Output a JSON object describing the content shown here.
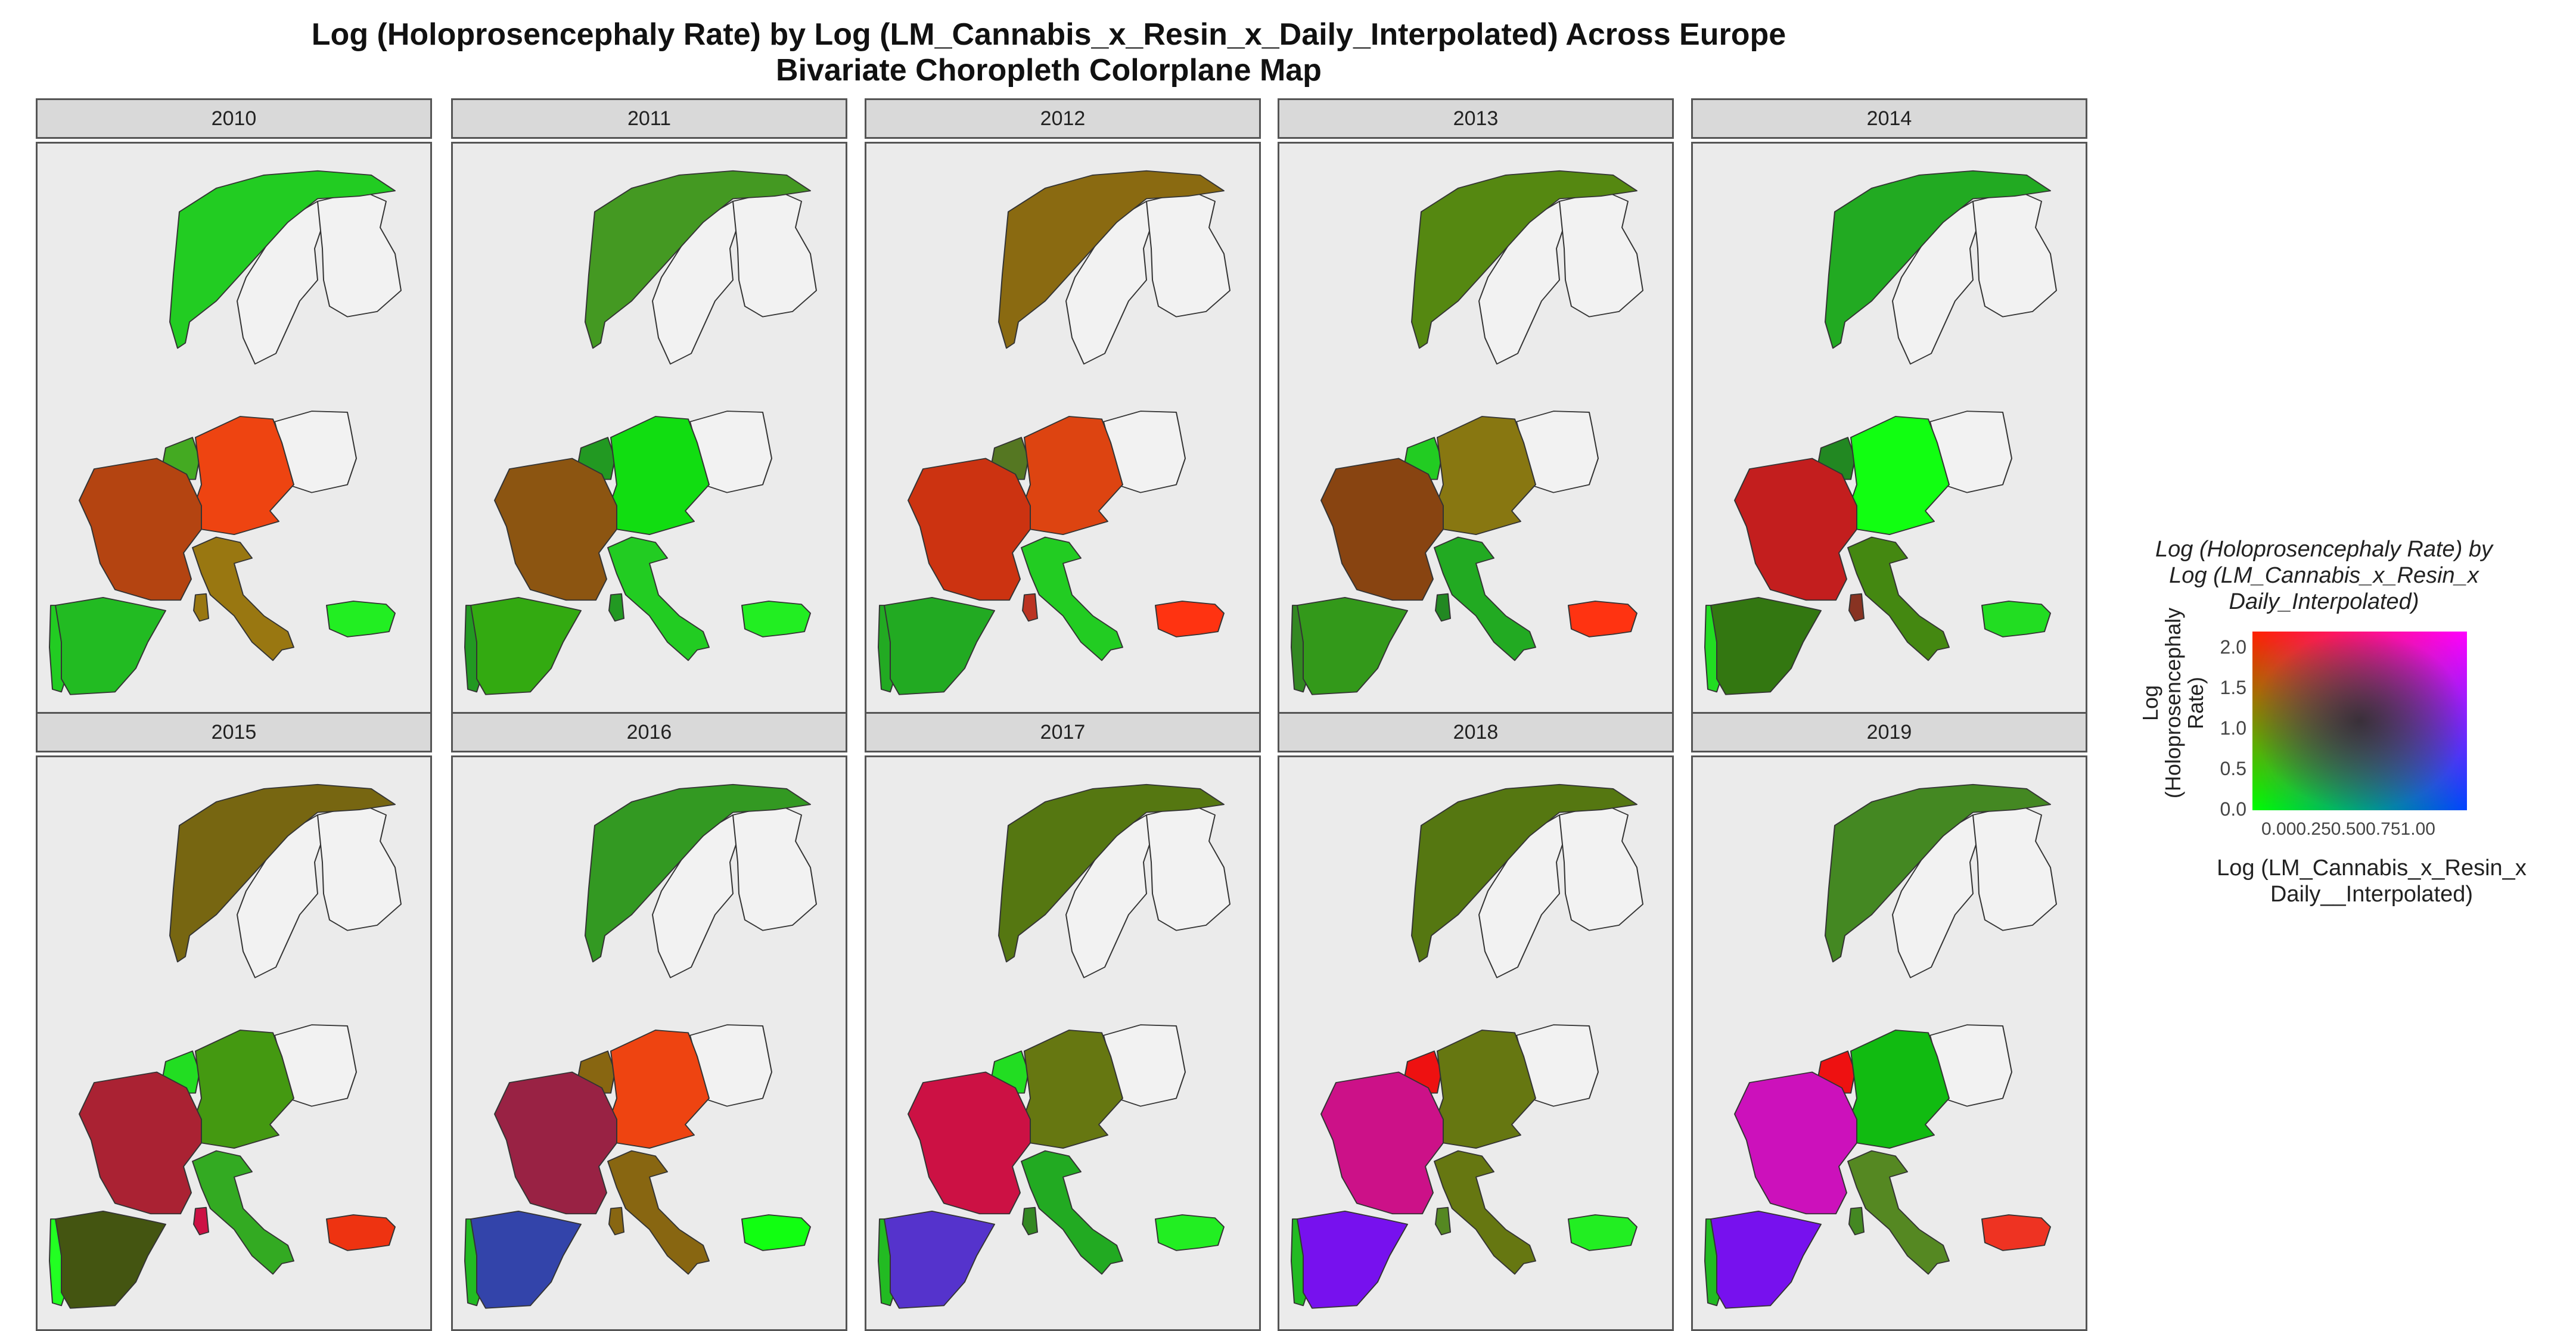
{
  "title": {
    "line1": "Log (Holoprosencephaly Rate) by Log (LM_Cannabis_x_Resin_x_Daily_Interpolated) Across Europe",
    "line2": "Bivariate Choropleth Colorplane Map"
  },
  "panels": [
    {
      "year": "2010",
      "fill": {
        "NOR": "#22cc22",
        "SWE": "#f2f2f2",
        "FIN": "#f2f2f2",
        "GER": "#ee4411",
        "POL": "#f2f2f2",
        "FRA": "#b44411",
        "SPA": "#22bb22",
        "POR": "#22cc22",
        "ITA": "#997711",
        "BEN": "#44aa22",
        "BUL": "#22ee22",
        "SAR": "#997711"
      }
    },
    {
      "year": "2011",
      "fill": {
        "NOR": "#449922",
        "SWE": "#f2f2f2",
        "FIN": "#f2f2f2",
        "GER": "#11dd11",
        "POL": "#f2f2f2",
        "FRA": "#8c5511",
        "SPA": "#33aa11",
        "POR": "#229922",
        "ITA": "#22cc22",
        "BEN": "#229922",
        "BUL": "#22ee22",
        "SAR": "#229922"
      }
    },
    {
      "year": "2012",
      "fill": {
        "NOR": "#8a6a11",
        "SWE": "#f2f2f2",
        "FIN": "#f2f2f2",
        "GER": "#dd4411",
        "POL": "#f2f2f2",
        "FRA": "#cc3311",
        "SPA": "#22aa22",
        "POR": "#22aa22",
        "ITA": "#22cc22",
        "BEN": "#557722",
        "BUL": "#ff3311",
        "SAR": "#bb3322"
      }
    },
    {
      "year": "2013",
      "fill": {
        "NOR": "#558811",
        "SWE": "#f2f2f2",
        "FIN": "#f2f2f2",
        "GER": "#887711",
        "POL": "#f2f2f2",
        "FRA": "#884411",
        "SPA": "#33991a",
        "POR": "#338822",
        "ITA": "#22aa22",
        "BEN": "#22cc22",
        "BUL": "#ff3311",
        "SAR": "#228822"
      }
    },
    {
      "year": "2014",
      "fill": {
        "NOR": "#22aa22",
        "SWE": "#f2f2f2",
        "FIN": "#f2f2f2",
        "GER": "#11ff11",
        "POL": "#f2f2f2",
        "FRA": "#c31e1e",
        "SPA": "#337711",
        "POR": "#22dd22",
        "ITA": "#448811",
        "BEN": "#228822",
        "BUL": "#22dd22",
        "SAR": "#883322"
      }
    },
    {
      "year": "2015",
      "fill": {
        "NOR": "#776611",
        "SWE": "#f2f2f2",
        "FIN": "#f2f2f2",
        "GER": "#449911",
        "POL": "#f2f2f2",
        "FRA": "#aa2233",
        "SPA": "#445511",
        "POR": "#22ff22",
        "ITA": "#33aa22",
        "BEN": "#22dd22",
        "BUL": "#ee3311",
        "SAR": "#cc1144"
      }
    },
    {
      "year": "2016",
      "fill": {
        "NOR": "#339922",
        "SWE": "#f2f2f2",
        "FIN": "#f2f2f2",
        "GER": "#ee4411",
        "POL": "#f2f2f2",
        "FRA": "#992244",
        "SPA": "#3344aa",
        "POR": "#22bb22",
        "ITA": "#886611",
        "BEN": "#886611",
        "BUL": "#11ff11",
        "SAR": "#886611"
      }
    },
    {
      "year": "2017",
      "fill": {
        "NOR": "#557711",
        "SWE": "#f2f2f2",
        "FIN": "#f2f2f2",
        "GER": "#667711",
        "POL": "#f2f2f2",
        "FRA": "#cc1144",
        "SPA": "#5533cc",
        "POR": "#22bb22",
        "ITA": "#22aa22",
        "BEN": "#22dd22",
        "BUL": "#22ee22",
        "SAR": "#338822"
      }
    },
    {
      "year": "2018",
      "fill": {
        "NOR": "#557711",
        "SWE": "#f2f2f2",
        "FIN": "#f2f2f2",
        "GER": "#667711",
        "POL": "#f2f2f2",
        "FRA": "#cc1188",
        "SPA": "#7711ee",
        "POR": "#22bb22",
        "ITA": "#667711",
        "BEN": "#ee1111",
        "BUL": "#22ee22",
        "SAR": "#558822"
      }
    },
    {
      "year": "2019",
      "fill": {
        "NOR": "#448822",
        "SWE": "#f2f2f2",
        "FIN": "#f2f2f2",
        "GER": "#11bb11",
        "POL": "#f2f2f2",
        "FRA": "#cc11bb",
        "SPA": "#7711ee",
        "POR": "#22bb22",
        "ITA": "#558822",
        "BEN": "#ee1111",
        "BUL": "#ee3322",
        "SAR": "#448822"
      }
    }
  ],
  "legend": {
    "title": [
      "Log (Holoprosencephaly Rate) by",
      "Log (LM_Cannabis_x_Resin_x",
      "Daily_Interpolated)"
    ],
    "ylabel": [
      "Log",
      "(Holoprosencephaly",
      "Rate)"
    ],
    "xlabel": [
      "Log (LM_Cannabis_x_Resin_x",
      "Daily__Interpolated)"
    ],
    "yticks": [
      "2.0",
      "1.5",
      "1.0",
      "0.5",
      "0.0"
    ],
    "xticks_text": "0.000.250.500.751.00",
    "corner_colors": {
      "bottom_left": "#00ff00",
      "top_left": "#ff2200",
      "top_right": "#ff00ff",
      "bottom_right": "#0044ff",
      "center": "#222222"
    }
  }
}
